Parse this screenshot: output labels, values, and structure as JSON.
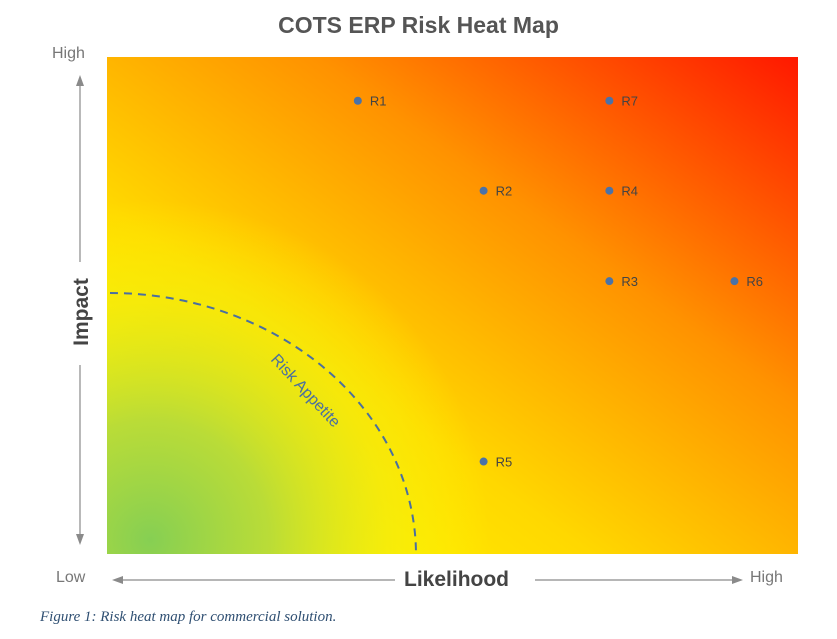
{
  "chart_data": {
    "type": "scatter",
    "title": "COTS ERP Risk Heat Map",
    "xlabel": "Likelihood",
    "ylabel": "Impact",
    "x_low_label": "Low",
    "x_high_label": "High",
    "y_high_label": "High",
    "xlim": [
      0,
      1
    ],
    "ylim": [
      0,
      1
    ],
    "grid": false,
    "point_color": "#4a72a8",
    "gradient_colors": [
      "#8ccf52",
      "#ffff00",
      "#ff9000",
      "#ff1a00"
    ],
    "points": [
      {
        "label": "R1",
        "x": 0.363,
        "y": 0.912
      },
      {
        "label": "R7",
        "x": 0.727,
        "y": 0.912
      },
      {
        "label": "R2",
        "x": 0.545,
        "y": 0.731
      },
      {
        "label": "R4",
        "x": 0.727,
        "y": 0.731
      },
      {
        "label": "R3",
        "x": 0.727,
        "y": 0.549
      },
      {
        "label": "R6",
        "x": 0.908,
        "y": 0.549
      },
      {
        "label": "R5",
        "x": 0.545,
        "y": 0.186
      }
    ],
    "annotation": "Risk Appetite"
  },
  "caption": "Figure 1: Risk heat map for commercial solution."
}
